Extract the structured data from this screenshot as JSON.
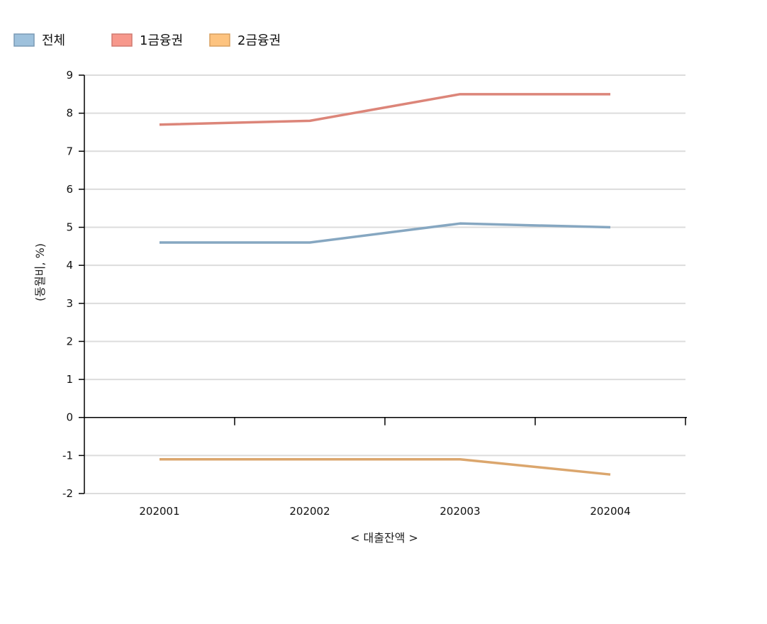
{
  "chart_data": {
    "type": "line",
    "categories": [
      "202001",
      "202002",
      "202003",
      "202004"
    ],
    "series": [
      {
        "name": "전체",
        "values": [
          4.6,
          4.6,
          5.1,
          5.0
        ],
        "line_color": "#86a7c1",
        "legend_fill": "#9ec1dc",
        "legend_stroke": "#7a9ab5"
      },
      {
        "name": "1금융권",
        "values": [
          7.7,
          7.8,
          8.5,
          8.5
        ],
        "line_color": "#dc8579",
        "legend_fill": "#f7988c",
        "legend_stroke": "#d07a70"
      },
      {
        "name": "2금융권",
        "values": [
          -1.1,
          -1.1,
          -1.1,
          -1.5
        ],
        "line_color": "#dba66d",
        "legend_fill": "#fdc37f",
        "legend_stroke": "#d9a060"
      }
    ],
    "xlabel": "< 대출잔액 >",
    "ylabel": "(동월비, %)",
    "ylim": [
      -2,
      9
    ],
    "yticks": [
      "-2",
      "-1",
      "0",
      "1",
      "2",
      "3",
      "4",
      "5",
      "6",
      "7",
      "8",
      "9"
    ],
    "grid": true,
    "legend_position": "top-left"
  }
}
